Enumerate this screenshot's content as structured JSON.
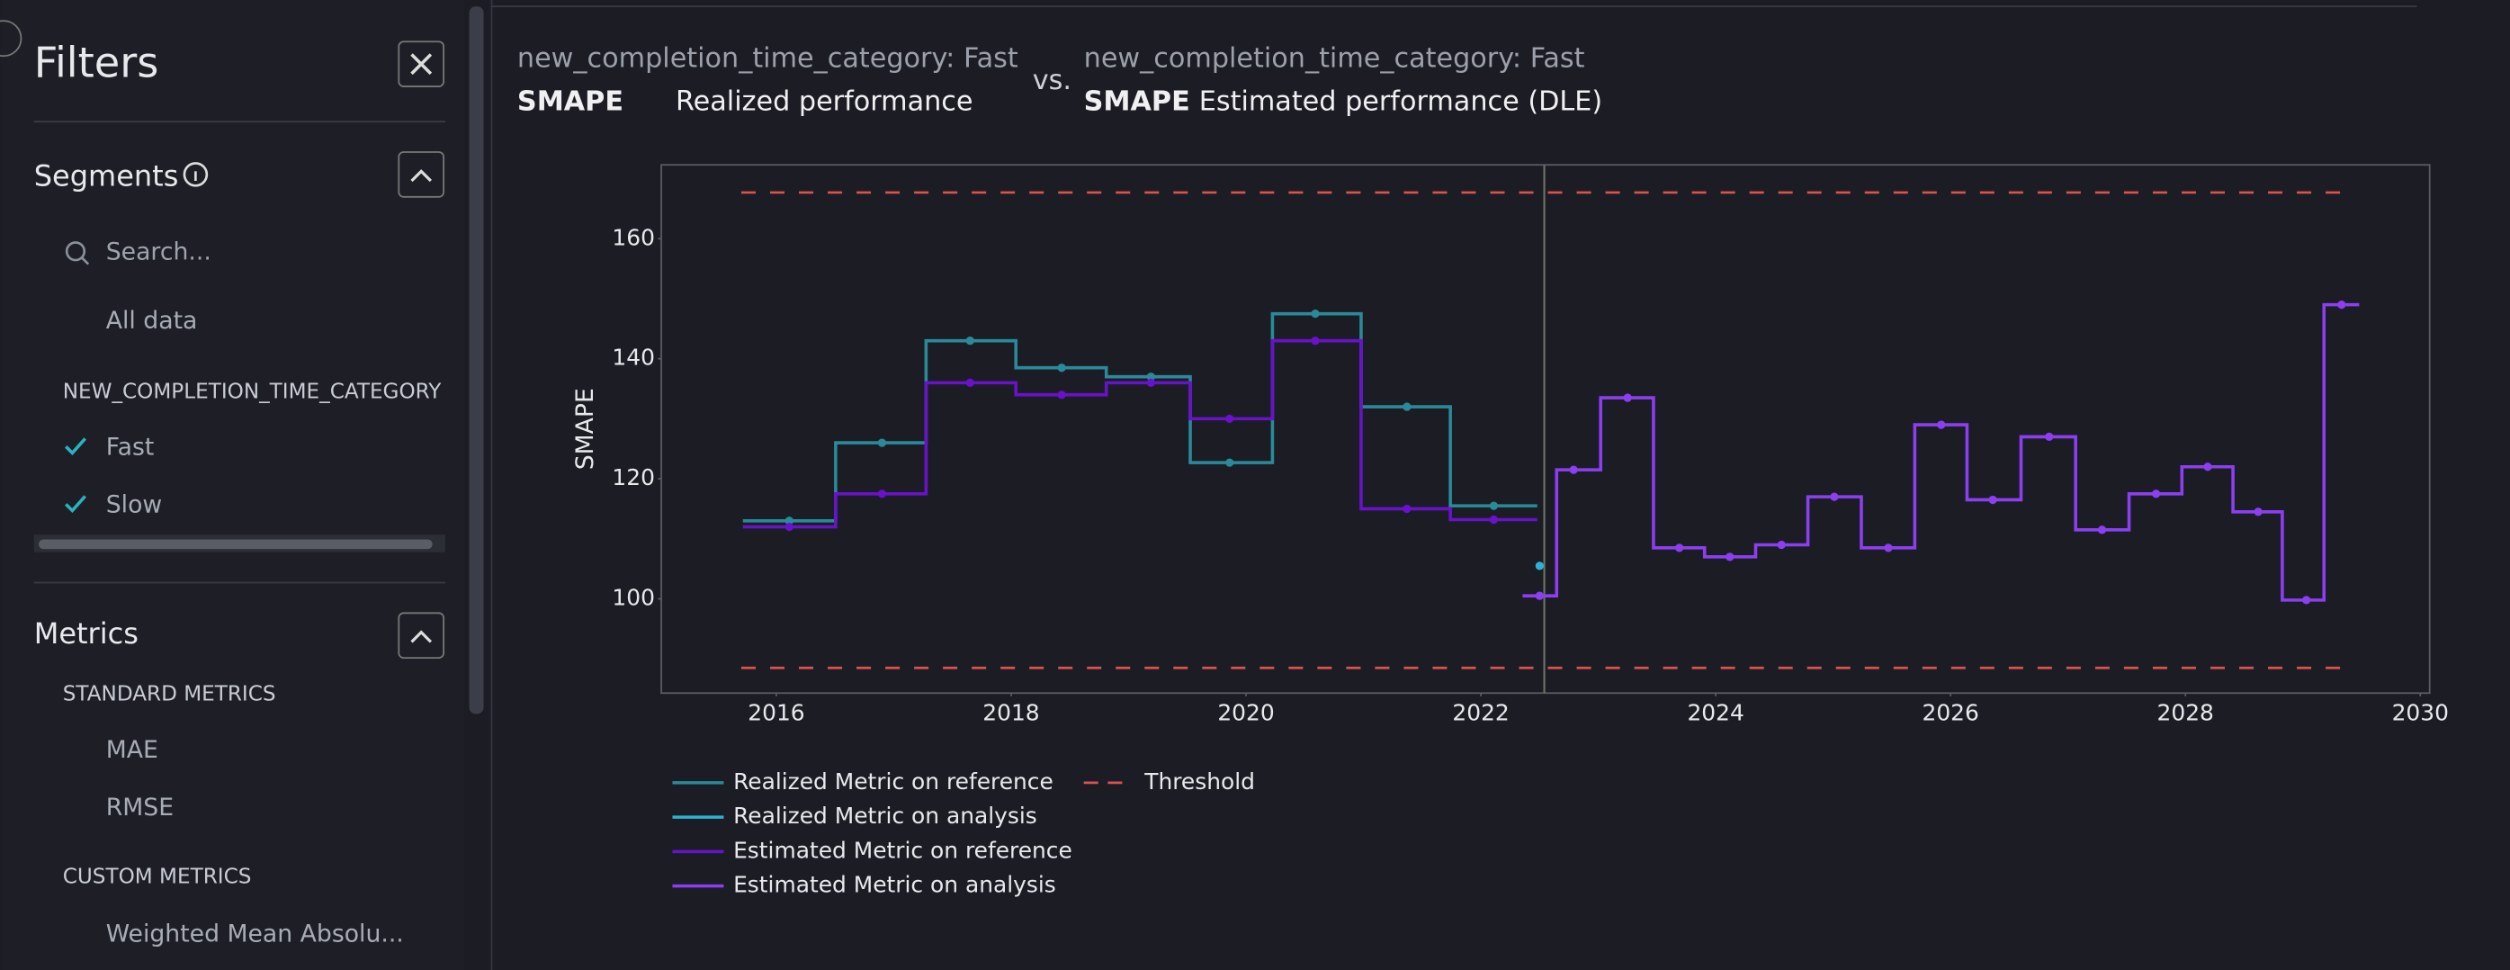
{
  "sidebar": {
    "title": "Filters",
    "segments": {
      "title": "Segments",
      "search_placeholder": "Search...",
      "all": "All data",
      "group": "NEW_COMPLETION_TIME_CATEGORY",
      "items": [
        "Fast",
        "Slow"
      ]
    },
    "metrics": {
      "title": "Metrics",
      "groups": [
        {
          "title": "STANDARD METRICS",
          "items": [
            "MAE",
            "RMSE"
          ]
        },
        {
          "title": "CUSTOM METRICS",
          "items": [
            "Weighted Mean Absolu..."
          ]
        }
      ]
    }
  },
  "header": {
    "left": {
      "segment": "new_completion_time_category: Fast",
      "metric": "SMAPE",
      "label": "Realized performance"
    },
    "vs": "vs.",
    "right": {
      "segment": "new_completion_time_category: Fast",
      "metric": "SMAPE",
      "label": "Estimated performance (DLE)"
    }
  },
  "chart_data": {
    "type": "step",
    "y_label": "SMAPE",
    "xlim": [
      2015.02,
      2030.08
    ],
    "ylim": [
      84.3,
      172.3
    ],
    "xticks": [
      2016,
      2018,
      2020,
      2022,
      2024,
      2026,
      2028,
      2030
    ],
    "yticks": [
      100,
      120,
      140,
      160
    ],
    "boundary": 2022.54,
    "threshold": {
      "name": "Threshold",
      "color": "#d9534f",
      "values": [
        88.5,
        167.7
      ]
    },
    "series": [
      {
        "name": "Realized Metric on reference",
        "color": "#2a8a9a",
        "x": [
          2016.11,
          2016.9,
          2017.65,
          2018.43,
          2019.19,
          2019.86,
          2020.59,
          2021.37,
          2022.11
        ],
        "values": [
          113,
          126,
          143,
          138.5,
          137,
          122.7,
          147.5,
          132,
          115.5
        ]
      },
      {
        "name": "Realized Metric on analysis",
        "color": "#2bb3d6",
        "x": [
          2022.5
        ],
        "values": [
          105.5
        ]
      },
      {
        "name": "Estimated Metric on reference",
        "color": "#6a11cb",
        "x": [
          2016.11,
          2016.9,
          2017.65,
          2018.43,
          2019.19,
          2019.86,
          2020.59,
          2021.37,
          2022.11
        ],
        "values": [
          112,
          117.5,
          136,
          134,
          136,
          130,
          143,
          115,
          113.2
        ]
      },
      {
        "name": "Estimated Metric on analysis",
        "color": "#8b3ff0",
        "x": [
          2022.5,
          2022.79,
          2023.25,
          2023.69,
          2024.12,
          2024.56,
          2025.01,
          2025.47,
          2025.92,
          2026.36,
          2026.84,
          2027.29,
          2027.75,
          2028.19,
          2028.62,
          2029.03,
          2029.33
        ],
        "values": [
          100.5,
          121.5,
          133.5,
          108.5,
          107,
          109,
          117,
          108.5,
          129,
          116.5,
          127,
          111.5,
          117.5,
          122,
          114.5,
          99.8,
          149
        ]
      }
    ]
  }
}
